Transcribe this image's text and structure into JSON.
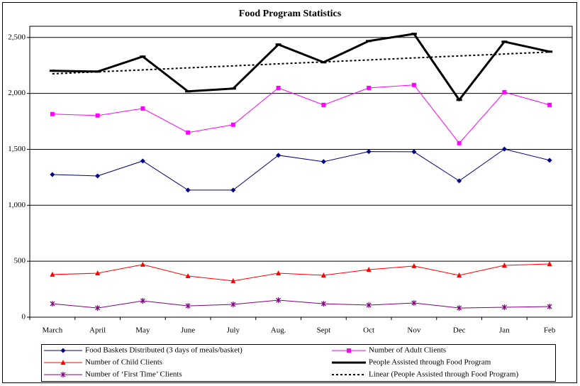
{
  "chart_data": {
    "type": "line",
    "title": "Food Program Statistics",
    "categories": [
      "March",
      "April",
      "May",
      "June",
      "July",
      "Aug.",
      "Sept",
      "Oct",
      "Nov",
      "Dec",
      "Jan",
      "Feb"
    ],
    "ylim": [
      0,
      2600
    ],
    "yticks": [
      0,
      500,
      {
        "value": 1000,
        "label": "1,000"
      },
      {
        "value": 1500,
        "label": "1,500"
      },
      {
        "value": 2000,
        "label": "2,000"
      },
      {
        "value": 2500,
        "label": "2,500"
      }
    ],
    "grid": true,
    "series": [
      {
        "name": "Food Baskets Distributed (3 days of meals/basket)",
        "color": "#000080",
        "marker": "diamond",
        "line_width": 1,
        "dashed": false,
        "values": [
          1275,
          1262,
          1396,
          1136,
          1136,
          1447,
          1390,
          1480,
          1478,
          1218,
          1502,
          1402
        ]
      },
      {
        "name": "Number of Adult Clients",
        "color": "#ff00ff",
        "marker": "square",
        "line_width": 1,
        "dashed": false,
        "values": [
          1815,
          1802,
          1865,
          1650,
          1720,
          2049,
          1897,
          2049,
          2075,
          1555,
          2011,
          1897
        ]
      },
      {
        "name": "Number of Child Clients",
        "color": "#ff0000",
        "marker": "triangle",
        "line_width": 1,
        "dashed": false,
        "values": [
          381,
          393,
          470,
          368,
          324,
          393,
          374,
          425,
          457,
          374,
          463,
          476
        ]
      },
      {
        "name": "People Assisted through Food Program",
        "color": "#000000",
        "marker": "dash",
        "line_width": 3,
        "dashed": false,
        "values": [
          2202,
          2195,
          2329,
          2018,
          2043,
          2437,
          2278,
          2468,
          2532,
          1942,
          2462,
          2373
        ]
      },
      {
        "name": "Number of ‘First Time’ Clients",
        "color": "#800080",
        "marker": "asterisk",
        "line_width": 1,
        "dashed": false,
        "values": [
          120,
          82,
          146,
          101,
          114,
          152,
          120,
          108,
          127,
          82,
          89,
          95
        ]
      },
      {
        "name": "Linear (People Assisted through Food Program)",
        "color": "#000000",
        "marker": "none",
        "line_width": 2,
        "dashed": true,
        "values": [
          2175,
          2193,
          2210,
          2228,
          2246,
          2264,
          2281,
          2299,
          2317,
          2335,
          2352,
          2370
        ]
      }
    ]
  }
}
